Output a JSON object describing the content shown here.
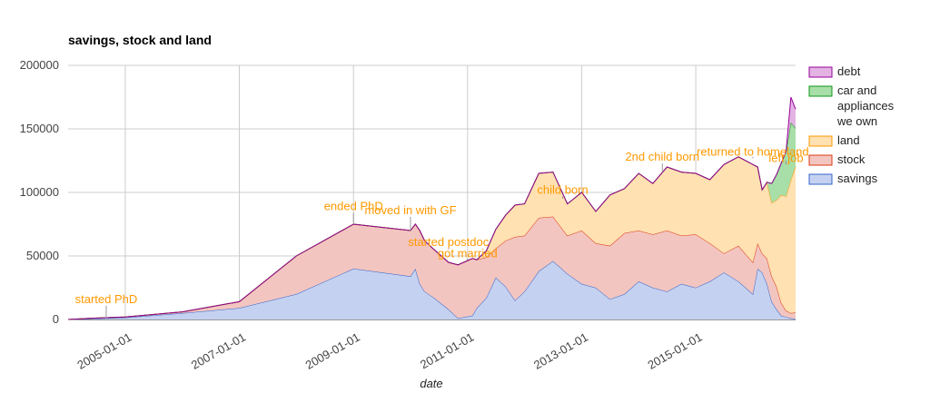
{
  "chart_data": {
    "type": "area",
    "stacked": true,
    "title": "savings, stock and land",
    "xlabel": "date",
    "ylabel": "",
    "ylim": [
      0,
      200000
    ],
    "yticks": [
      0,
      50000,
      100000,
      150000,
      200000
    ],
    "ytick_labels": [
      "0",
      "50000",
      "100000",
      "150000",
      "200000"
    ],
    "xlim": [
      "2004-01-01",
      "2016-10-01"
    ],
    "xticks": [
      "2005-01-01",
      "2007-01-01",
      "2009-01-01",
      "2011-01-01",
      "2013-01-01",
      "2015-01-01"
    ],
    "grid": true,
    "legend_position": "right",
    "colors": {
      "savings": "#c5d1f0",
      "savings_line": "#3366cc",
      "stock": "#f3c5c0",
      "stock_line": "#dc3912",
      "land": "#ffe1b2",
      "land_line": "#ff9900",
      "car": "#a8dfa8",
      "car_line": "#109618",
      "debt": "#e3b3e3",
      "debt_line": "#990099",
      "annotation": "#ff9900"
    },
    "legend": [
      {
        "key": "debt",
        "label": "debt"
      },
      {
        "key": "car",
        "label": "car and appliances we own"
      },
      {
        "key": "land",
        "label": "land"
      },
      {
        "key": "stock",
        "label": "stock"
      },
      {
        "key": "savings",
        "label": "savings"
      }
    ],
    "series_stacked_order": [
      "savings",
      "stock",
      "land",
      "car",
      "debt"
    ],
    "x": [
      "2004-01-01",
      "2004-06-01",
      "2005-01-01",
      "2006-01-01",
      "2007-01-01",
      "2008-01-01",
      "2009-01-01",
      "2010-01-01",
      "2010-02-01",
      "2010-03-01",
      "2010-04-01",
      "2010-06-01",
      "2010-09-01",
      "2010-11-01",
      "2011-02-01",
      "2011-03-01",
      "2011-05-01",
      "2011-07-01",
      "2011-09-01",
      "2011-11-01",
      "2012-01-01",
      "2012-04-01",
      "2012-07-01",
      "2012-10-01",
      "2013-01-01",
      "2013-04-01",
      "2013-07-01",
      "2013-10-01",
      "2014-01-01",
      "2014-04-01",
      "2014-07-01",
      "2014-10-01",
      "2015-01-01",
      "2015-04-01",
      "2015-07-01",
      "2015-10-01",
      "2016-01-01",
      "2016-02-01",
      "2016-03-01",
      "2016-04-01",
      "2016-05-01",
      "2016-06-01",
      "2016-07-01",
      "2016-08-01",
      "2016-09-01",
      "2016-10-01"
    ],
    "series": [
      {
        "name": "savings",
        "values": [
          0,
          500,
          1500,
          5000,
          9000,
          20000,
          40000,
          34000,
          40000,
          28000,
          22000,
          17000,
          8000,
          1000,
          3000,
          9000,
          17000,
          33000,
          26000,
          15000,
          22000,
          38000,
          46000,
          36000,
          28000,
          25000,
          16000,
          20000,
          30000,
          25000,
          22000,
          28000,
          25000,
          30000,
          37000,
          30000,
          20000,
          40000,
          37000,
          28000,
          14000,
          8000,
          3000,
          2000,
          1000,
          500
        ]
      },
      {
        "name": "stock",
        "values": [
          0,
          500,
          500,
          1000,
          5000,
          30000,
          35000,
          36000,
          35000,
          42000,
          40000,
          38000,
          37000,
          42000,
          45000,
          38000,
          32000,
          23000,
          36000,
          50000,
          44000,
          42000,
          35000,
          30000,
          42000,
          35000,
          42000,
          48000,
          40000,
          42000,
          48000,
          38000,
          42000,
          30000,
          15000,
          28000,
          25000,
          20000,
          15000,
          20000,
          20000,
          18000,
          10000,
          5000,
          4000,
          5000
        ]
      },
      {
        "name": "land",
        "values": [
          0,
          0,
          0,
          0,
          0,
          0,
          0,
          0,
          0,
          0,
          0,
          0,
          0,
          0,
          0,
          0,
          5000,
          15000,
          20000,
          25000,
          25000,
          35000,
          35000,
          25000,
          30000,
          25000,
          40000,
          35000,
          45000,
          40000,
          50000,
          50000,
          48000,
          50000,
          70000,
          70000,
          77000,
          60000,
          50000,
          60000,
          58000,
          68000,
          85000,
          90000,
          105000,
          115000
        ]
      },
      {
        "name": "car",
        "values": [
          0,
          0,
          0,
          0,
          0,
          0,
          0,
          0,
          0,
          0,
          0,
          0,
          0,
          0,
          0,
          0,
          0,
          0,
          0,
          0,
          0,
          0,
          0,
          0,
          0,
          0,
          0,
          0,
          0,
          0,
          0,
          0,
          0,
          0,
          0,
          0,
          0,
          0,
          0,
          0,
          15000,
          20000,
          25000,
          35000,
          45000,
          30000
        ]
      },
      {
        "name": "debt",
        "values": [
          0,
          0,
          0,
          0,
          0,
          0,
          0,
          0,
          0,
          0,
          0,
          0,
          0,
          0,
          0,
          0,
          0,
          0,
          0,
          0,
          0,
          0,
          0,
          0,
          0,
          0,
          0,
          0,
          0,
          0,
          0,
          0,
          0,
          0,
          0,
          0,
          0,
          0,
          0,
          0,
          0,
          0,
          0,
          0,
          20000,
          15000
        ]
      }
    ],
    "annotations": [
      {
        "text": "started PhD",
        "date": "2004-09-01",
        "value": 1000,
        "label_value": 13000
      },
      {
        "text": "ended PhD",
        "date": "2009-01-01",
        "value": 75000,
        "label_value": 86000
      },
      {
        "text": "moved in with GF",
        "date": "2010-01-01",
        "value": 70000,
        "label_value": 83000
      },
      {
        "text": "started postdoc",
        "date": "2010-09-01",
        "value": 55000,
        "label_value": 58000
      },
      {
        "text": "got married",
        "date": "2011-01-01",
        "value": 48000,
        "label_value": 49000
      },
      {
        "text": "child born",
        "date": "2012-09-01",
        "value": 95000,
        "label_value": 99000
      },
      {
        "text": "2nd child born",
        "date": "2014-06-01",
        "value": 116000,
        "label_value": 125000
      },
      {
        "text": "returned to homeland",
        "date": "2016-01-01",
        "value": 128000,
        "label_value": 129000
      },
      {
        "text": "left job",
        "date": "2016-08-01",
        "value": 125000,
        "label_value": 124000
      }
    ]
  }
}
